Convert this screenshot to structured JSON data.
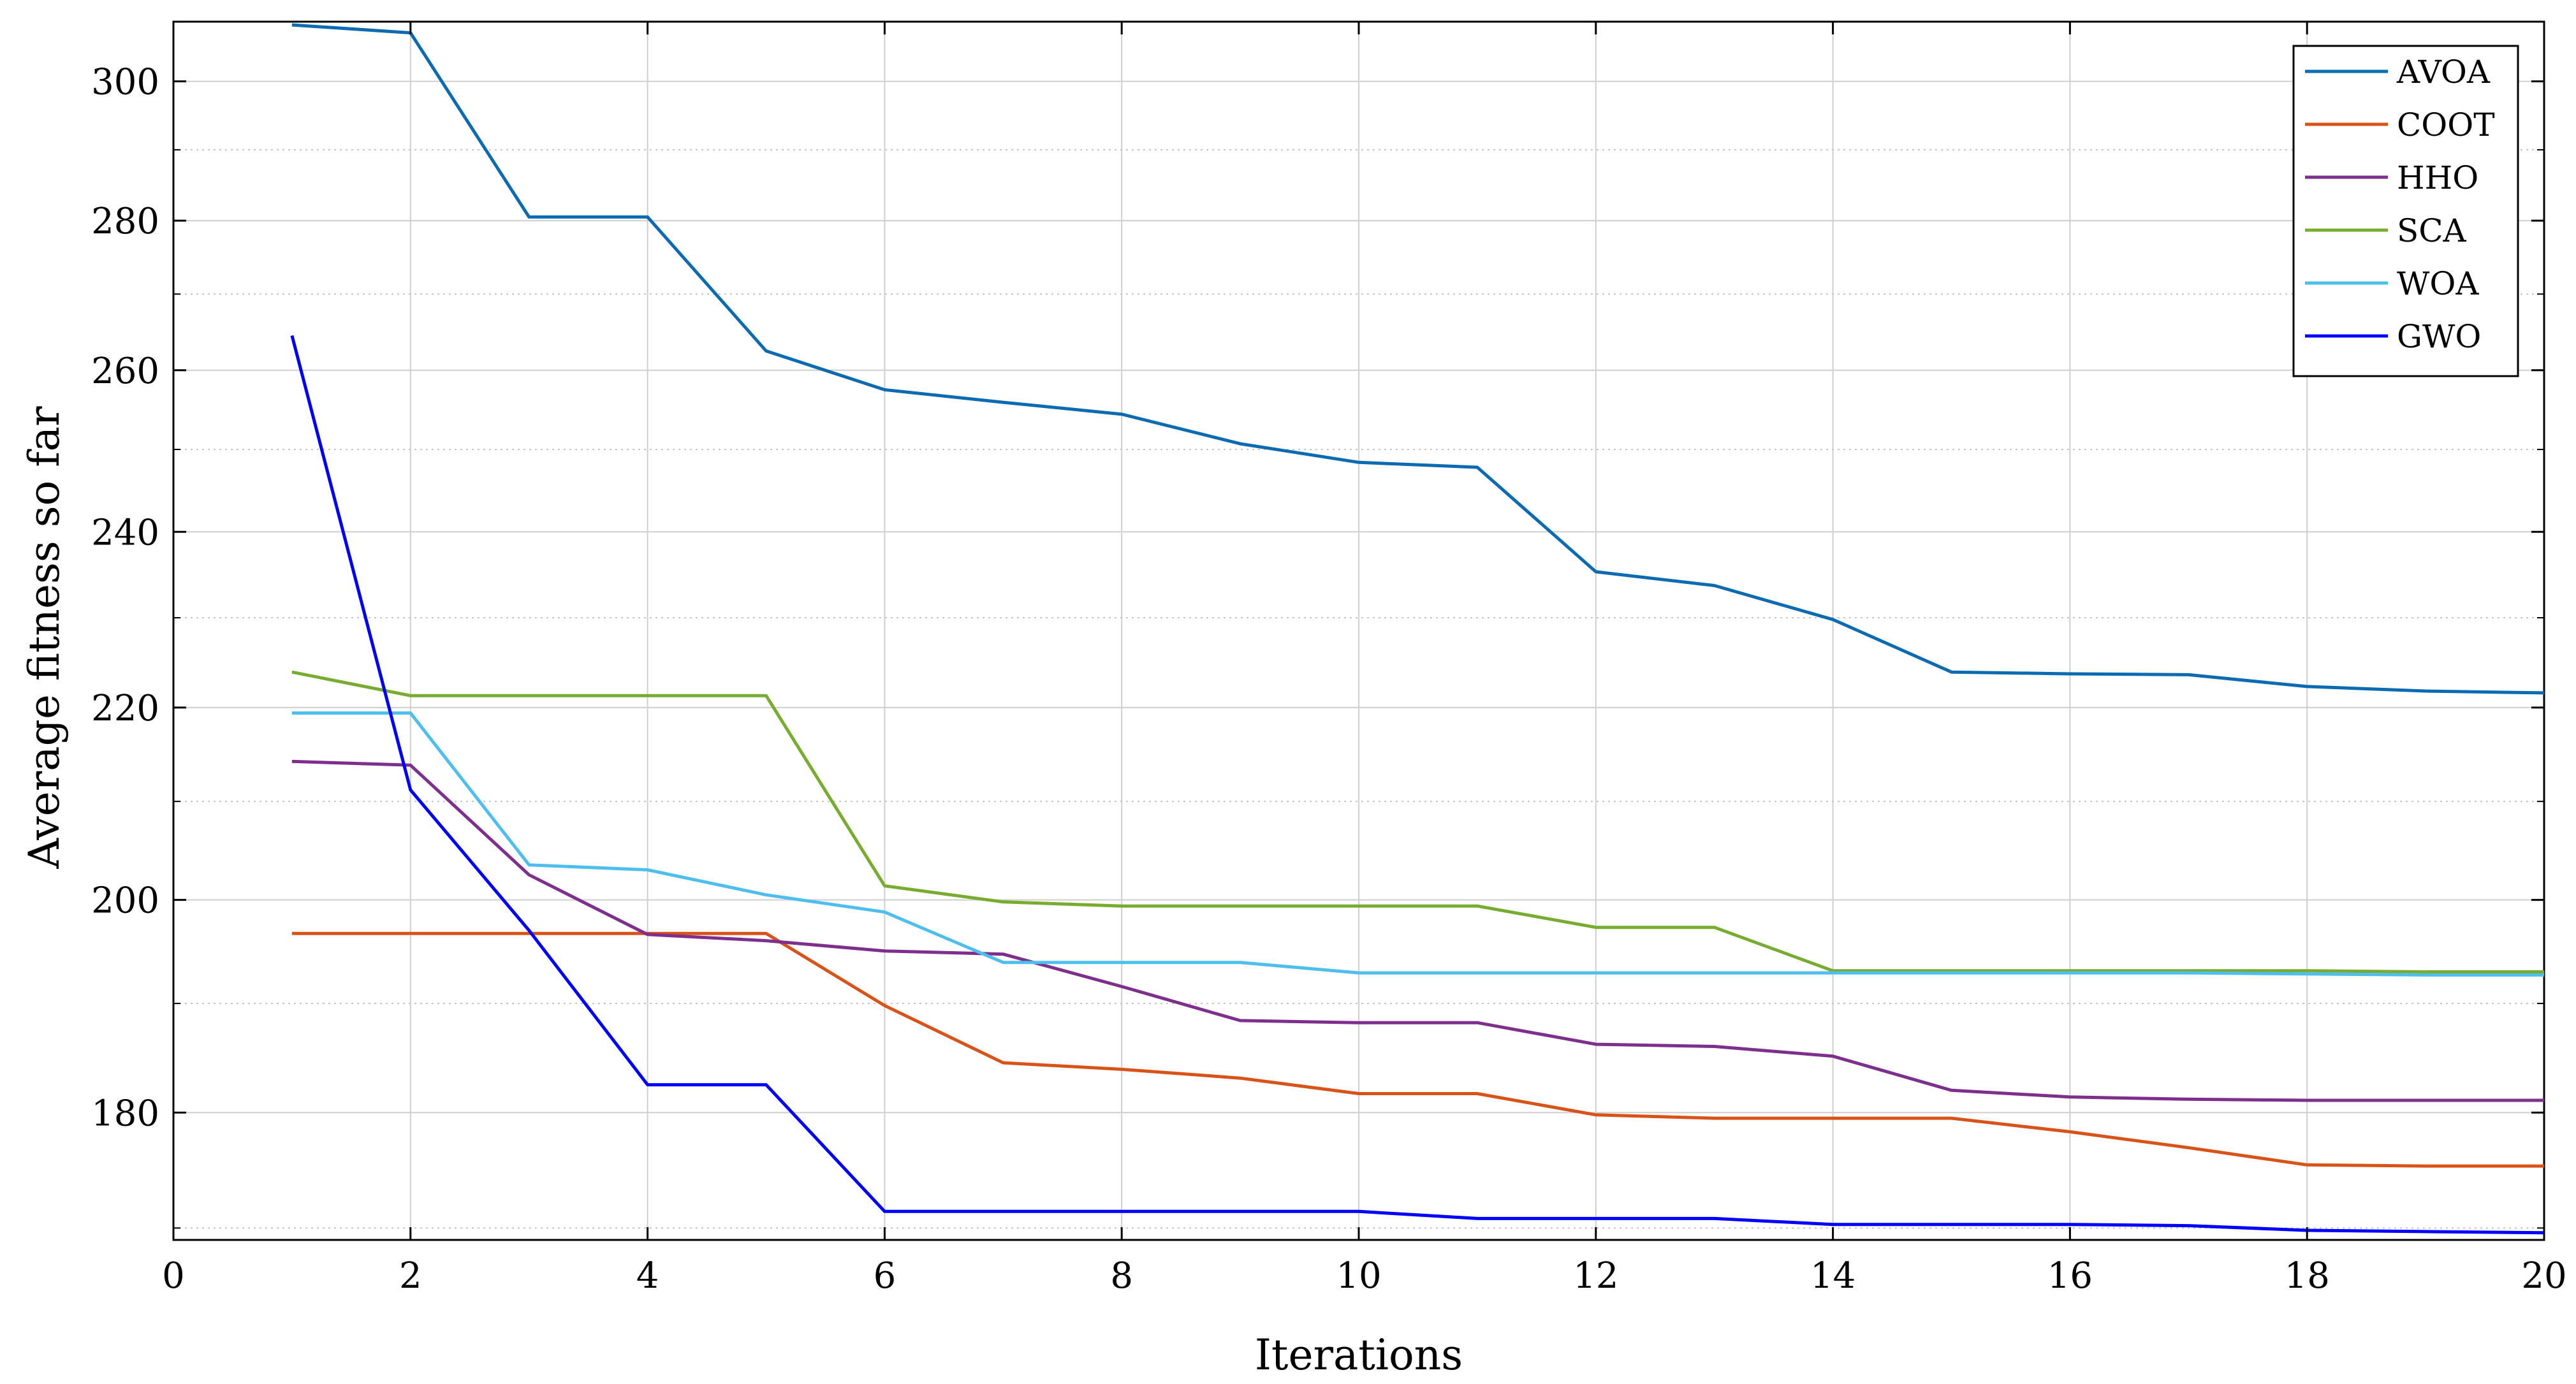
{
  "chart_data": {
    "type": "line",
    "title": "",
    "xlabel": "Iterations",
    "ylabel": "Average fitness so far",
    "yscale": "log",
    "xlim": [
      0,
      20
    ],
    "ylim": [
      169,
      309
    ],
    "x_ticks": [
      0,
      2,
      4,
      6,
      8,
      10,
      12,
      14,
      16,
      18,
      20
    ],
    "y_ticks": [
      180,
      200,
      220,
      240,
      260,
      280,
      300
    ],
    "grid": true,
    "legend_position": "top-right",
    "x": [
      1,
      2,
      3,
      4,
      5,
      6,
      7,
      8,
      9,
      10,
      11,
      12,
      13,
      14,
      15,
      16,
      17,
      18,
      19,
      20
    ],
    "series": [
      {
        "name": "AVOA",
        "color": "#0a6bb2",
        "values": [
          308.5,
          307.3,
          280.5,
          280.5,
          262.5,
          257.5,
          255.9,
          254.4,
          250.7,
          248.4,
          247.8,
          235.3,
          233.7,
          229.8,
          223.9,
          223.7,
          223.6,
          222.3,
          221.8,
          221.6
        ]
      },
      {
        "name": "COOT",
        "color": "#d95319",
        "values": [
          196.7,
          196.7,
          196.7,
          196.7,
          196.7,
          189.8,
          184.5,
          183.9,
          183.1,
          181.7,
          181.7,
          179.8,
          179.5,
          179.5,
          179.5,
          178.3,
          176.9,
          175.4,
          175.3,
          175.3
        ]
      },
      {
        "name": "HHO",
        "color": "#7e2f8e",
        "values": [
          214.2,
          213.8,
          202.5,
          196.6,
          196.0,
          195.0,
          194.7,
          191.6,
          188.4,
          188.2,
          188.2,
          186.2,
          186.0,
          185.1,
          182.0,
          181.4,
          181.2,
          181.1,
          181.1,
          181.1
        ]
      },
      {
        "name": "SCA",
        "color": "#77ac30",
        "values": [
          223.9,
          221.3,
          221.3,
          221.3,
          221.3,
          201.4,
          199.8,
          199.4,
          199.4,
          199.4,
          199.4,
          197.3,
          197.3,
          193.1,
          193.1,
          193.1,
          193.1,
          193.1,
          193.0,
          193.0
        ]
      },
      {
        "name": "WOA",
        "color": "#4dbeee",
        "values": [
          219.4,
          219.4,
          203.5,
          203.0,
          200.5,
          198.8,
          193.9,
          193.9,
          193.9,
          192.9,
          192.9,
          192.9,
          192.9,
          192.9,
          192.9,
          192.9,
          192.9,
          192.8,
          192.7,
          192.7
        ]
      },
      {
        "name": "GWO",
        "color": "#0000ff",
        "values": [
          264.5,
          211.2,
          197.0,
          182.5,
          182.5,
          171.4,
          171.4,
          171.4,
          171.4,
          171.4,
          170.8,
          170.8,
          170.8,
          170.3,
          170.3,
          170.3,
          170.2,
          169.8,
          169.7,
          169.6
        ]
      }
    ]
  }
}
